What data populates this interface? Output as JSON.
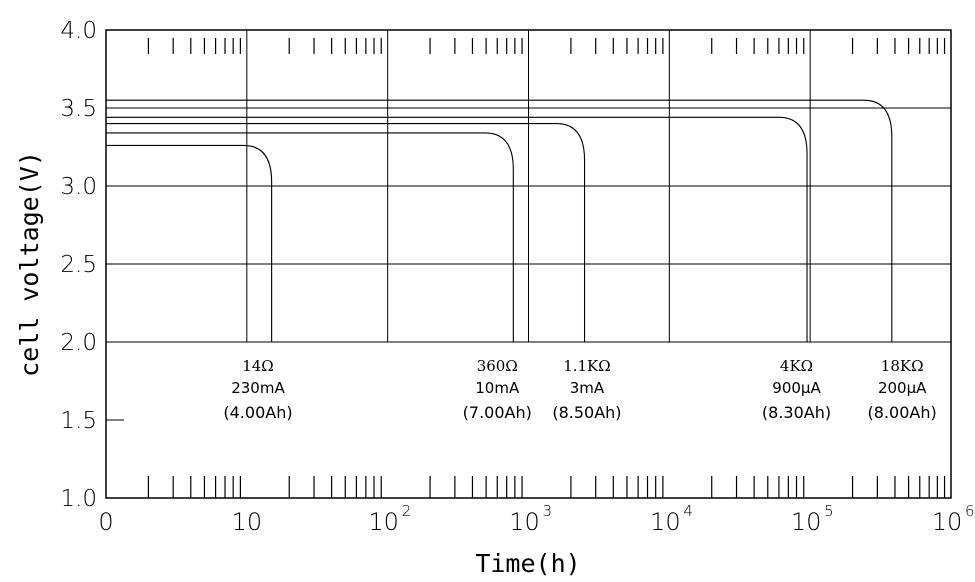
{
  "chart_data": {
    "type": "line",
    "title": "",
    "xlabel": "Time(h)",
    "ylabel": "cell voltage(V)",
    "x_scale": "log",
    "x_ticks": [
      {
        "value": 1,
        "label": "0",
        "sup": ""
      },
      {
        "value": 10,
        "label": "10",
        "sup": ""
      },
      {
        "value": 100,
        "label": "10",
        "sup": "2"
      },
      {
        "value": 1000,
        "label": "10",
        "sup": "3"
      },
      {
        "value": 10000,
        "label": "10",
        "sup": "4"
      },
      {
        "value": 100000,
        "label": "10",
        "sup": "5"
      },
      {
        "value": 1000000,
        "label": "10",
        "sup": "6"
      }
    ],
    "y_ticks": [
      {
        "value": 1.0,
        "label": "1.0"
      },
      {
        "value": 1.5,
        "label": "1.5"
      },
      {
        "value": 2.0,
        "label": "2.0"
      },
      {
        "value": 2.5,
        "label": "2.5"
      },
      {
        "value": 3.0,
        "label": "3.0"
      },
      {
        "value": 3.5,
        "label": "3.5"
      },
      {
        "value": 4.0,
        "label": "4.0"
      }
    ],
    "xlim": [
      1,
      1000000
    ],
    "ylim": [
      1.0,
      4.0
    ],
    "grid": "on (2.0–4.0 V region)",
    "series": [
      {
        "plateau_v": 3.26,
        "end_h": 15
      },
      {
        "plateau_v": 3.34,
        "end_h": 780
      },
      {
        "plateau_v": 3.4,
        "end_h": 2500
      },
      {
        "plateau_v": 3.44,
        "end_h": 95000
      },
      {
        "plateau_v": 3.55,
        "end_h": 380000
      }
    ],
    "annotations": [
      {
        "lines": [
          {
            "text": "14Ω",
            "style": "serif"
          },
          {
            "text": "230mA",
            "style": "sans"
          },
          {
            "text": "(4.00Ah)",
            "style": "bold"
          }
        ],
        "x_h": 12
      },
      {
        "lines": [
          {
            "text": "360Ω",
            "style": "serif"
          },
          {
            "text": "10mA",
            "style": "sans"
          },
          {
            "text": "(7.00Ah)",
            "style": "bold"
          }
        ],
        "x_h": 600
      },
      {
        "lines": [
          {
            "text": "1.1KΩ",
            "style": "serif"
          },
          {
            "text": "3mA",
            "style": "sans"
          },
          {
            "text": "(8.50Ah)",
            "style": "bold"
          }
        ],
        "x_h": 2600
      },
      {
        "lines": [
          {
            "text": "4KΩ",
            "style": "serif"
          },
          {
            "text": "900μA",
            "style": "sans"
          },
          {
            "text": "(8.30Ah)",
            "style": "bold"
          }
        ],
        "x_h": 80000
      },
      {
        "lines": [
          {
            "text": "18KΩ",
            "style": "serif"
          },
          {
            "text": "200μA",
            "style": "sans"
          },
          {
            "text": "(8.00Ah)",
            "style": "bold"
          }
        ],
        "x_h": 450000
      }
    ]
  }
}
